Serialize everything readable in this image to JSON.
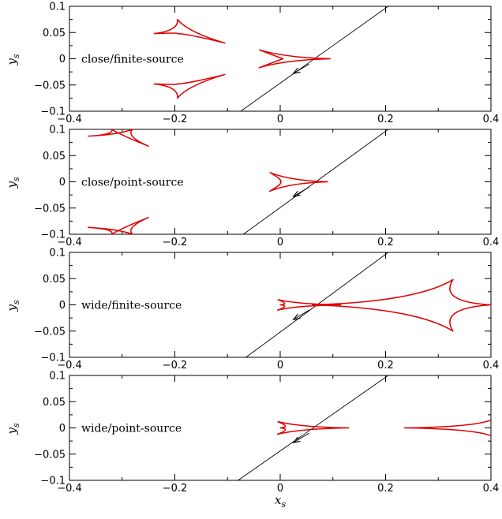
{
  "chart_data": [
    {
      "type": "line",
      "panel_label": "close/finite-source",
      "xlim": [
        -0.4,
        0.4
      ],
      "ylim": [
        -0.1,
        0.1
      ],
      "xticks": [
        "−0.4",
        "−0.2",
        "0",
        "0.2",
        "0.4"
      ],
      "yticks": [
        "0.1",
        "0.05",
        "0",
        "−0.05",
        "−0.1"
      ],
      "ylabel_base": "y",
      "ylabel_sub": "s",
      "trajectory": {
        "x": [
          -0.075,
          0.205
        ],
        "y": [
          -0.1,
          0.1
        ]
      },
      "arrow": {
        "x": 0.055,
        "y": -0.01,
        "dx": -0.03,
        "dy": -0.018
      },
      "caustics": [
        {
          "name": "upper-planetary",
          "cusps": [
            [
              -0.24,
              0.048
            ],
            [
              -0.195,
              0.075
            ],
            [
              -0.105,
              0.03
            ],
            [
              -0.195,
              0.048
            ]
          ]
        },
        {
          "name": "lower-planetary",
          "cusps": [
            [
              -0.24,
              -0.048
            ],
            [
              -0.195,
              -0.075
            ],
            [
              -0.105,
              -0.03
            ],
            [
              -0.195,
              -0.048
            ]
          ]
        },
        {
          "name": "central",
          "cusps": [
            [
              -0.04,
              0.017
            ],
            [
              0.005,
              0
            ],
            [
              -0.04,
              -0.017
            ],
            [
              0.095,
              0
            ]
          ]
        }
      ]
    },
    {
      "type": "line",
      "panel_label": "close/point-source",
      "xlim": [
        -0.4,
        0.4
      ],
      "ylim": [
        -0.1,
        0.1
      ],
      "xticks": [
        "−0.4",
        "−0.2",
        "0",
        "0.2",
        "0.4"
      ],
      "yticks": [
        "0.1",
        "0.05",
        "0",
        "−0.05",
        "−0.1"
      ],
      "ylabel_base": "y",
      "ylabel_sub": "s",
      "trajectory": {
        "x": [
          -0.07,
          0.205
        ],
        "y": [
          -0.1,
          0.1
        ]
      },
      "arrow": {
        "x": 0.055,
        "y": -0.01,
        "dx": -0.03,
        "dy": -0.018
      },
      "caustics": [
        {
          "name": "upper-planetary",
          "cusps": [
            [
              -0.365,
              0.087
            ],
            [
              -0.32,
              0.1
            ],
            [
              -0.25,
              0.068
            ],
            [
              -0.28,
              0.1
            ]
          ]
        },
        {
          "name": "lower-planetary",
          "cusps": [
            [
              -0.365,
              -0.087
            ],
            [
              -0.32,
              -0.1
            ],
            [
              -0.25,
              -0.068
            ],
            [
              -0.28,
              -0.1
            ]
          ]
        },
        {
          "name": "central",
          "cusps": [
            [
              -0.02,
              0.018
            ],
            [
              0.0,
              0
            ],
            [
              -0.02,
              -0.018
            ],
            [
              0.09,
              0
            ]
          ]
        }
      ]
    },
    {
      "type": "line",
      "panel_label": "wide/finite-source",
      "xlim": [
        -0.4,
        0.4
      ],
      "ylim": [
        -0.1,
        0.1
      ],
      "xticks": [
        "−0.4",
        "−0.2",
        "0",
        "0.2",
        "0.4"
      ],
      "yticks": [
        "0.1",
        "0.05",
        "0",
        "−0.05",
        "−0.1"
      ],
      "ylabel_base": "y",
      "ylabel_sub": "s",
      "trajectory": {
        "x": [
          -0.065,
          0.205
        ],
        "y": [
          -0.1,
          0.1
        ]
      },
      "arrow": {
        "x": 0.055,
        "y": -0.01,
        "dx": -0.03,
        "dy": -0.018
      },
      "caustics": [
        {
          "name": "central",
          "cusps": [
            [
              -0.005,
              0.01
            ],
            [
              0.0,
              0
            ],
            [
              -0.005,
              -0.01
            ],
            [
              0.115,
              0
            ]
          ]
        },
        {
          "name": "planetary",
          "cusps": [
            [
              0.06,
              0
            ],
            [
              0.328,
              0.048
            ],
            [
              0.4,
              0.0
            ],
            [
              0.328,
              -0.05
            ]
          ]
        }
      ]
    },
    {
      "type": "line",
      "panel_label": "wide/point-source",
      "xlim": [
        -0.4,
        0.4
      ],
      "ylim": [
        -0.1,
        0.1
      ],
      "xticks": [
        "−0.4",
        "−0.2",
        "0",
        "0.2",
        "0.4"
      ],
      "yticks": [
        "0.1",
        "0.05",
        "0",
        "−0.05",
        "−0.1"
      ],
      "ylabel_base": "y",
      "ylabel_sub": "s",
      "xlabel_base": "x",
      "xlabel_sub": "s",
      "trajectory": {
        "x": [
          -0.08,
          0.205
        ],
        "y": [
          -0.1,
          0.1
        ]
      },
      "arrow": {
        "x": 0.055,
        "y": -0.01,
        "dx": -0.03,
        "dy": -0.018
      },
      "caustics": [
        {
          "name": "central",
          "cusps": [
            [
              -0.005,
              0.012
            ],
            [
              0.0,
              0
            ],
            [
              -0.005,
              -0.012
            ],
            [
              0.13,
              0
            ]
          ]
        },
        {
          "name": "planetary",
          "cusps": [
            [
              0.235,
              0
            ],
            [
              0.4,
              0.015
            ],
            [
              0.5,
              0.0
            ],
            [
              0.4,
              -0.015
            ]
          ]
        }
      ]
    }
  ]
}
